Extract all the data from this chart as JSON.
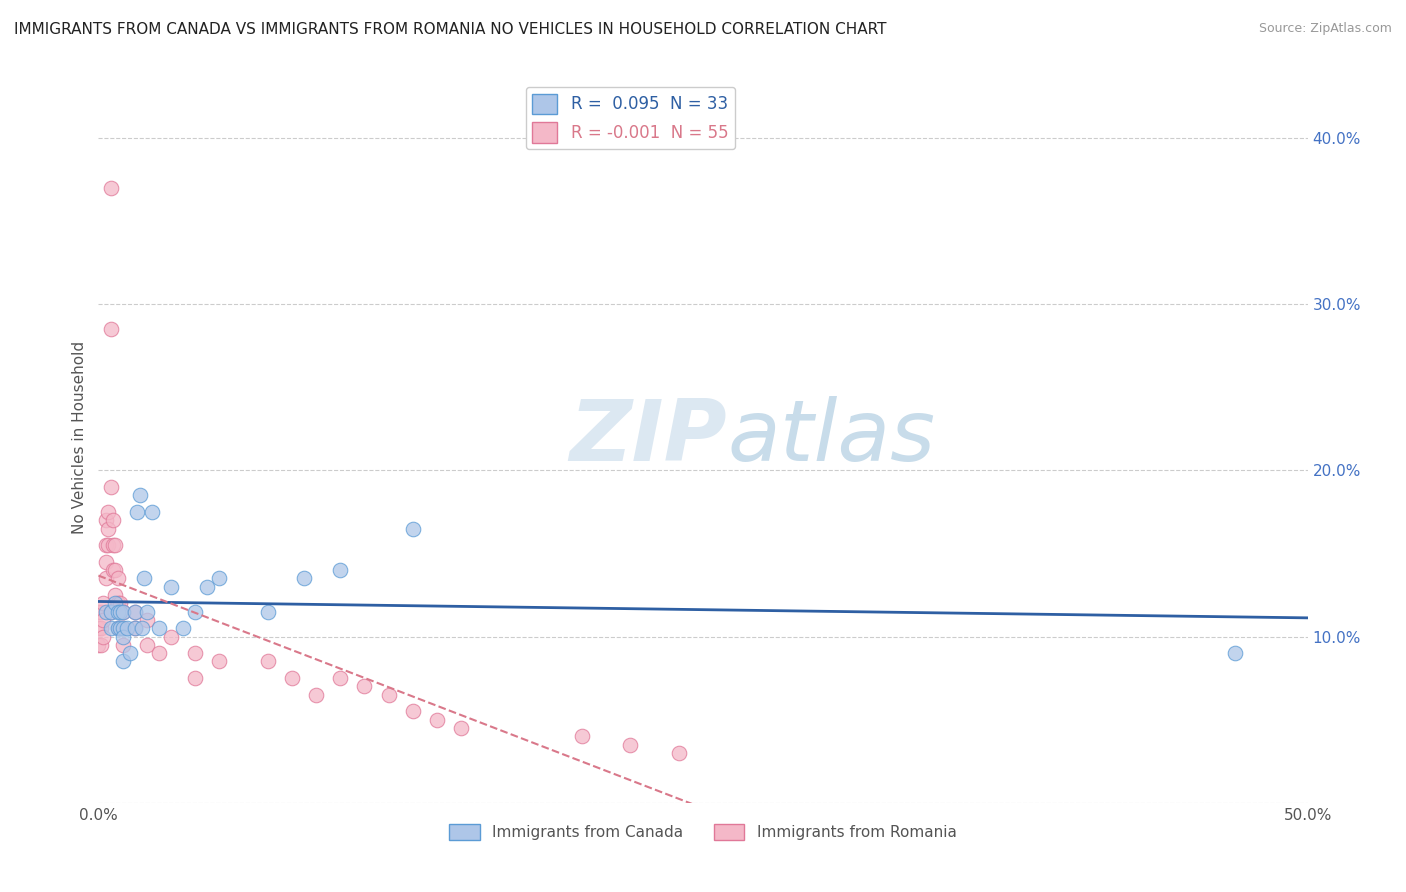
{
  "title": "IMMIGRANTS FROM CANADA VS IMMIGRANTS FROM ROMANIA NO VEHICLES IN HOUSEHOLD CORRELATION CHART",
  "source": "Source: ZipAtlas.com",
  "ylabel": "No Vehicles in Household",
  "xlim": [
    0.0,
    0.5
  ],
  "ylim": [
    0.0,
    0.44
  ],
  "xticks": [
    0.0,
    0.1,
    0.2,
    0.3,
    0.4,
    0.5
  ],
  "xticklabels": [
    "0.0%",
    "",
    "",
    "",
    "",
    "50.0%"
  ],
  "yticks": [
    0.0,
    0.1,
    0.2,
    0.3,
    0.4
  ],
  "left_yticklabels": [
    "",
    "",
    "",
    "",
    ""
  ],
  "right_yticklabels": [
    "",
    "10.0%",
    "20.0%",
    "30.0%",
    "40.0%"
  ],
  "canada_color": "#aec6e8",
  "canada_edge": "#5b9bd5",
  "romania_color": "#f4b8c8",
  "romania_edge": "#e07898",
  "canada_R": 0.095,
  "canada_N": 33,
  "romania_R": -0.001,
  "romania_N": 55,
  "canada_line_color": "#2e5fa3",
  "romania_line_color": "#d9788a",
  "watermark_zip": "ZIP",
  "watermark_atlas": "atlas",
  "background_color": "#ffffff",
  "grid_color": "#cccccc",
  "title_fontsize": 11,
  "axis_label_fontsize": 11,
  "tick_fontsize": 11,
  "right_ytick_color": "#4472c4",
  "canada_x": [
    0.003,
    0.005,
    0.005,
    0.007,
    0.008,
    0.008,
    0.009,
    0.009,
    0.01,
    0.01,
    0.01,
    0.01,
    0.012,
    0.013,
    0.015,
    0.015,
    0.016,
    0.017,
    0.018,
    0.019,
    0.02,
    0.022,
    0.025,
    0.03,
    0.035,
    0.04,
    0.045,
    0.05,
    0.07,
    0.085,
    0.1,
    0.13,
    0.47
  ],
  "canada_y": [
    0.115,
    0.115,
    0.105,
    0.12,
    0.115,
    0.105,
    0.115,
    0.105,
    0.115,
    0.105,
    0.1,
    0.085,
    0.105,
    0.09,
    0.115,
    0.105,
    0.175,
    0.185,
    0.105,
    0.135,
    0.115,
    0.175,
    0.105,
    0.13,
    0.105,
    0.115,
    0.13,
    0.135,
    0.115,
    0.135,
    0.14,
    0.165,
    0.09
  ],
  "romania_x": [
    0.0,
    0.0,
    0.0,
    0.001,
    0.001,
    0.001,
    0.002,
    0.002,
    0.002,
    0.003,
    0.003,
    0.003,
    0.003,
    0.004,
    0.004,
    0.004,
    0.005,
    0.005,
    0.005,
    0.005,
    0.006,
    0.006,
    0.006,
    0.007,
    0.007,
    0.007,
    0.008,
    0.008,
    0.008,
    0.009,
    0.009,
    0.01,
    0.01,
    0.01,
    0.015,
    0.015,
    0.02,
    0.02,
    0.025,
    0.03,
    0.04,
    0.04,
    0.05,
    0.07,
    0.08,
    0.09,
    0.1,
    0.11,
    0.12,
    0.13,
    0.14,
    0.15,
    0.2,
    0.22,
    0.24
  ],
  "romania_y": [
    0.115,
    0.105,
    0.095,
    0.115,
    0.105,
    0.095,
    0.12,
    0.11,
    0.1,
    0.17,
    0.155,
    0.145,
    0.135,
    0.175,
    0.165,
    0.155,
    0.37,
    0.285,
    0.19,
    0.115,
    0.17,
    0.155,
    0.14,
    0.155,
    0.14,
    0.125,
    0.135,
    0.12,
    0.105,
    0.12,
    0.105,
    0.115,
    0.105,
    0.095,
    0.115,
    0.105,
    0.11,
    0.095,
    0.09,
    0.1,
    0.09,
    0.075,
    0.085,
    0.085,
    0.075,
    0.065,
    0.075,
    0.07,
    0.065,
    0.055,
    0.05,
    0.045,
    0.04,
    0.035,
    0.03
  ]
}
